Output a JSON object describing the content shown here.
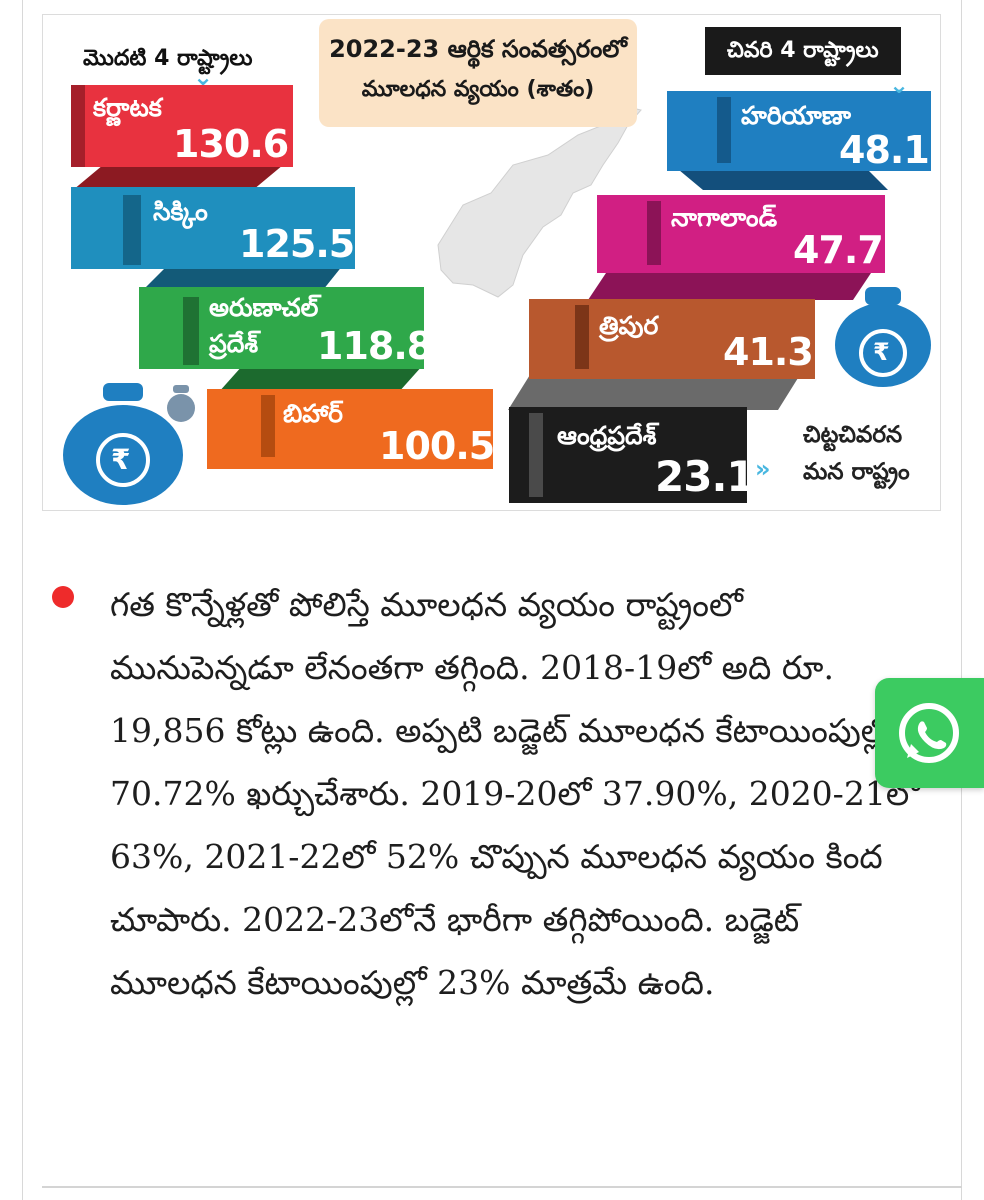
{
  "infographic": {
    "title_year": "2022-23 ఆర్థిక సంవత్సరంలో",
    "title_subject": "మూలధన వ్యయం (శాతం)",
    "top_label": "మొదటి 4 రాష్ట్రాలు",
    "bottom_label": "చివరి 4 రాష్ట్రాలు",
    "top_states": [
      {
        "name": "కర్ణాటక",
        "value": "130.6"
      },
      {
        "name": "సిక్కిం",
        "value": "125.5"
      },
      {
        "name_line1": "అరుణాచల్",
        "name_line2": "ప్రదేశ్",
        "value": "118.8"
      },
      {
        "name": "బిహార్",
        "value": "100.5"
      }
    ],
    "bottom_states": [
      {
        "name": "హరియాణా",
        "value": "48.1"
      },
      {
        "name": "నాగాలాండ్",
        "value": "47.7"
      },
      {
        "name": "త్రిపుర",
        "value": "41.3"
      },
      {
        "name": "ఆంధ్రప్రదేశ్",
        "value": "23.1"
      }
    ],
    "note_line1": "చిట్టచివరన",
    "note_line2": "మన రాష్ట్రం",
    "currency_symbol": "₹",
    "colors": {
      "karnataka": "#e8323f",
      "sikkim": "#1f8fbe",
      "arunachal": "#2fa84a",
      "bihar": "#ef6a1f",
      "haryana": "#1f7fc1",
      "nagaland": "#d11f83",
      "tripura": "#b8582e",
      "andhra": "#1c1c1c",
      "title_bg": "#fbe3c6",
      "money_bag": "#1f7fc1"
    }
  },
  "article": {
    "paragraph": "గత కొన్నేళ్లతో పోలిస్తే మూలధన వ్యయం రాష్ట్రంలో మునుపెన్నడూ లేనంతగా తగ్గింది. 2018-19లో అది రూ. 19,856 కోట్లు ఉంది. అప్పటి బడ్జెట్ మూలధన కేటాయింపుల్లో 70.72% ఖర్చుచేశారు. 2019-20లో 37.90%, 2020-21లో 63%, 2021-22లో 52% చొప్పున మూలధన వ్యయం కింద చూపారు. 2022-23లోనే భారీగా తగ్గిపోయింది. బడ్జెట్ మూలధన కేటాయింపుల్లో 23% మాత్రమే ఉంది."
  },
  "share": {
    "icon": "whatsapp-icon"
  }
}
